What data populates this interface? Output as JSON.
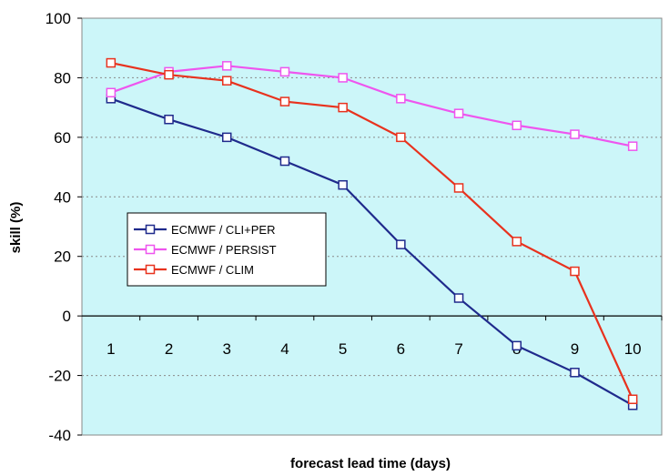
{
  "chart_data": {
    "type": "line",
    "title": "",
    "xlabel": "forecast lead time (days)",
    "ylabel": "skill (%)",
    "x": [
      1,
      2,
      3,
      4,
      5,
      6,
      7,
      8,
      9,
      10
    ],
    "xticks": [
      "1",
      "2",
      "3",
      "4",
      "5",
      "6",
      "7",
      "8",
      "9",
      "10"
    ],
    "yticks": [
      "-40",
      "-20",
      "0",
      "20",
      "40",
      "60",
      "80",
      "100"
    ],
    "ylim": [
      -40,
      100
    ],
    "grid": "horizontal dotted",
    "background_color": "#ccf6f9",
    "legend_position": "center-left",
    "series": [
      {
        "name": "ECMWF / CLI+PER",
        "color": "#1f2a8c",
        "values": [
          73,
          66,
          60,
          52,
          44,
          24,
          6,
          -10,
          -19,
          -30
        ]
      },
      {
        "name": "ECMWF / PERSIST",
        "color": "#ee55ee",
        "values": [
          75,
          82,
          84,
          82,
          80,
          73,
          68,
          64,
          61,
          57
        ]
      },
      {
        "name": "ECMWF / CLIM",
        "color": "#e8321e",
        "values": [
          85,
          81,
          79,
          72,
          70,
          60,
          43,
          25,
          15,
          -28
        ]
      }
    ]
  }
}
